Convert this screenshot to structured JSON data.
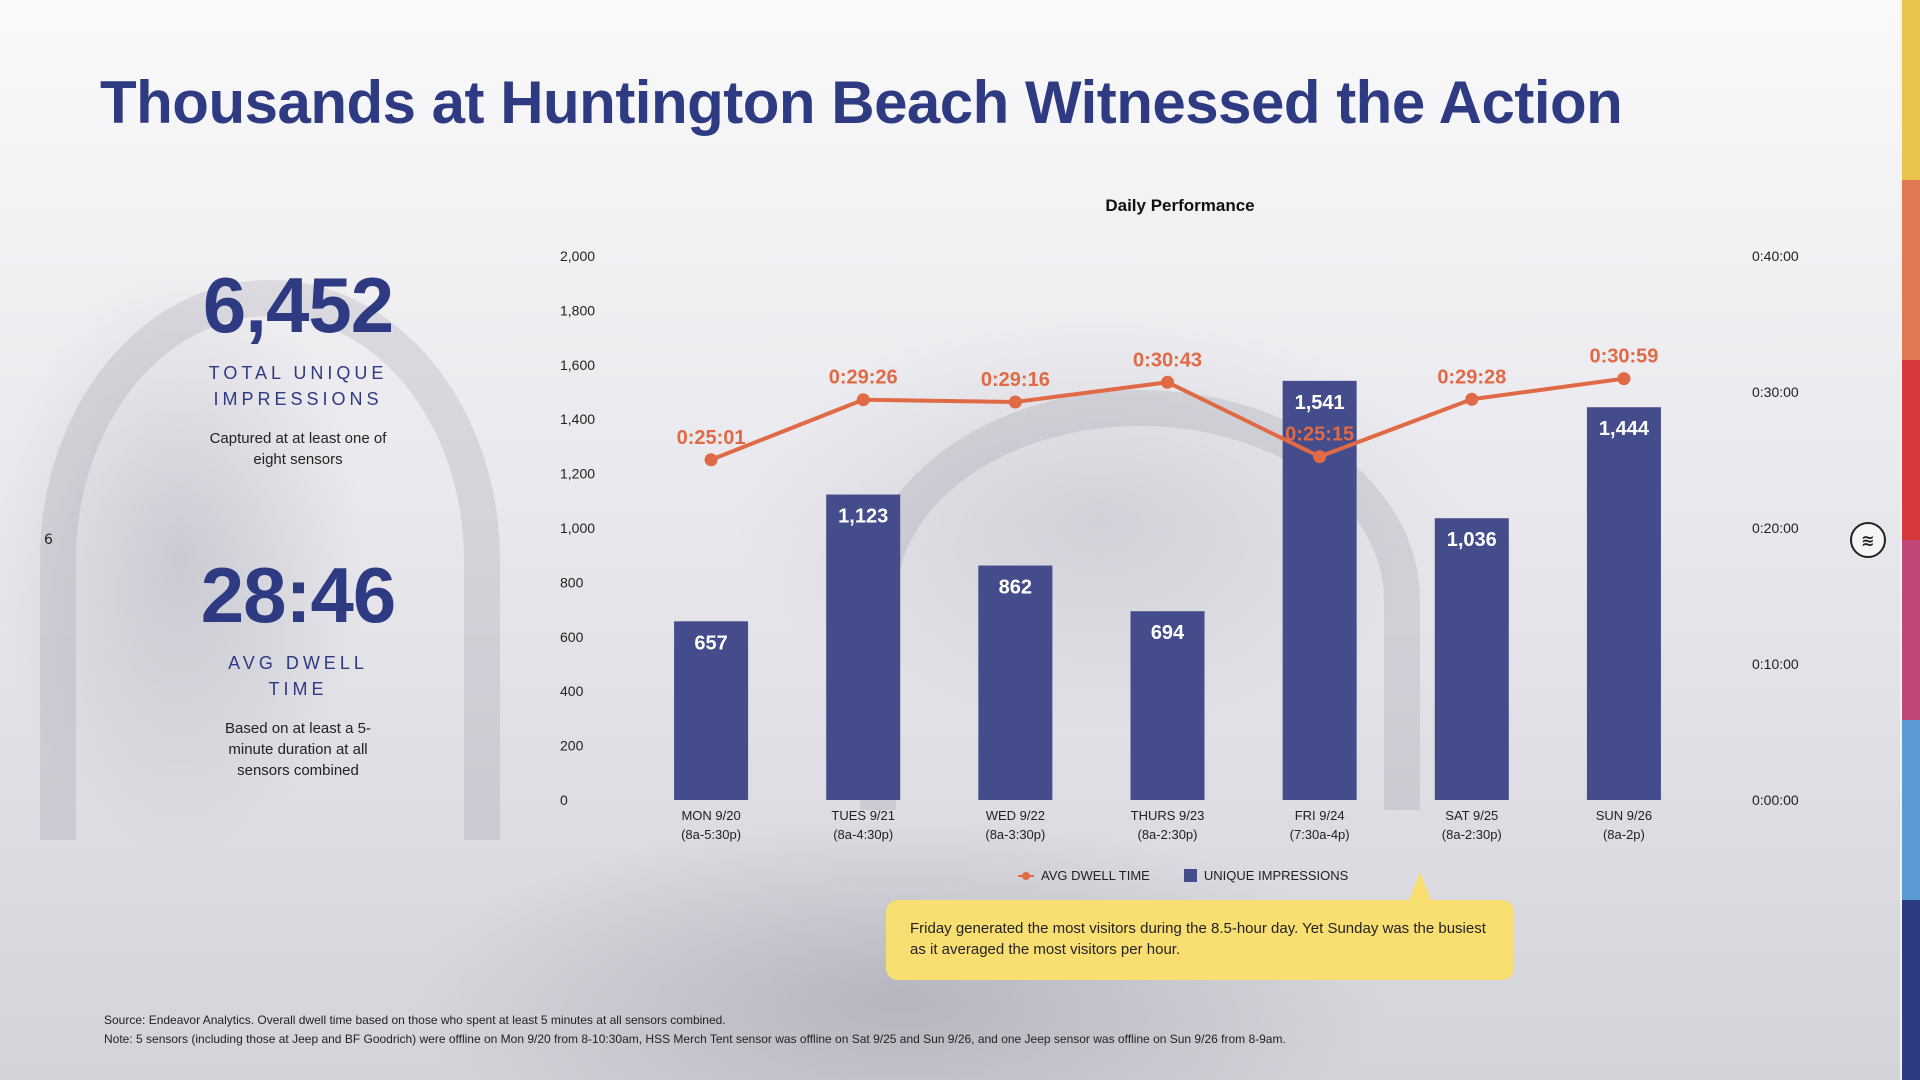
{
  "title": "Thousands at Huntington Beach Witnessed the Action",
  "page_number": "6",
  "kpis": {
    "impressions": {
      "value": "6,452",
      "label": "TOTAL UNIQUE IMPRESSIONS",
      "note": "Captured at at least one of eight sensors"
    },
    "dwell": {
      "value": "28:46",
      "label": "AVG DWELL TIME",
      "note": "Based on at least a 5-minute duration at all sensors combined"
    }
  },
  "brand_logo": "wave-logo-icon",
  "callout": "Friday generated the most visitors during the 8.5-hour day. Yet Sunday was the busiest as it averaged the most visitors per hour.",
  "footnotes": [
    "Source: Endeavor Analytics.  Overall dwell time based on those who spent at least 5 minutes at all sensors combined.",
    "Note: 5 sensors (including those at Jeep and BF Goodrich) were offline on Mon 9/20 from 8-10:30am, HSS Merch Tent sensor was offline on Sat 9/25 and Sun 9/26, and one Jeep sensor was offline on Sun 9/26 from 8-9am."
  ],
  "colors": {
    "title": "#2e3a82",
    "bar": "#444c8c",
    "line": "#e06a45",
    "callout": "#f9de72",
    "strip": [
      "#e8c34e",
      "#e07852",
      "#d63a3a",
      "#c2467a",
      "#5b9bd5",
      "#2e3a82"
    ]
  },
  "chart_data": {
    "type": "bar",
    "title": "Daily Performance",
    "categories": [
      [
        "MON 9/20",
        "(8a-5:30p)"
      ],
      [
        "TUES 9/21",
        "(8a-4:30p)"
      ],
      [
        "WED 9/22",
        "(8a-3:30p)"
      ],
      [
        "THURS 9/23",
        "(8a-2:30p)"
      ],
      [
        "FRI 9/24",
        "(7:30a-4p)"
      ],
      [
        "SAT 9/25",
        "(8a-2:30p)"
      ],
      [
        "SUN 9/26",
        "(8a-2p)"
      ]
    ],
    "series": [
      {
        "name": "UNIQUE IMPRESSIONS",
        "type": "bar",
        "axis": "left",
        "values": [
          657,
          1123,
          862,
          694,
          1541,
          1036,
          1444
        ],
        "labels": [
          "657",
          "1,123",
          "862",
          "694",
          "1,541",
          "1,036",
          "1,444"
        ]
      },
      {
        "name": "AVG DWELL TIME",
        "type": "line",
        "axis": "right",
        "values": [
          "0:25:01",
          "0:29:26",
          "0:29:16",
          "0:30:43",
          "0:25:15",
          "0:29:28",
          "0:30:59"
        ],
        "labels": [
          "0:25:01",
          "0:29:26",
          "0:29:16",
          "0:30:43",
          "0:25:15",
          "0:29:28",
          "0:30:59"
        ]
      }
    ],
    "y_left": {
      "range": [
        0,
        2000
      ],
      "ticks": [
        "0",
        "200",
        "400",
        "600",
        "800",
        "1,000",
        "1,200",
        "1,400",
        "1,600",
        "1,800",
        "2,000"
      ]
    },
    "y_right": {
      "range": [
        "0:00:00",
        "0:40:00"
      ],
      "ticks": [
        "0:00:00",
        "0:10:00",
        "0:20:00",
        "0:30:00",
        "0:40:00"
      ]
    },
    "grid": false,
    "legend": "bottom"
  }
}
